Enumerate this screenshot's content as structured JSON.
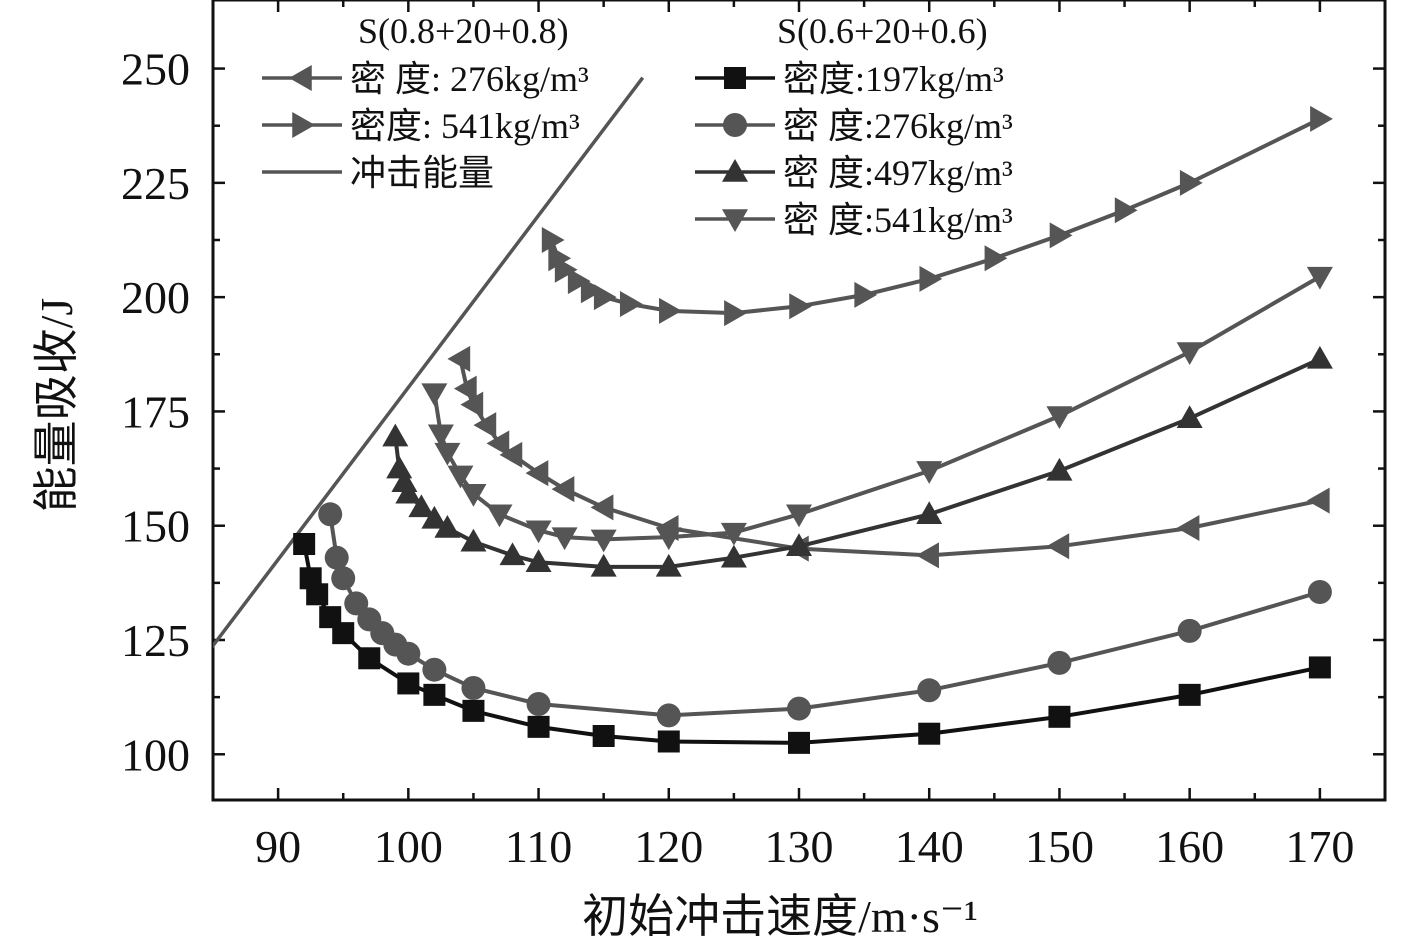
{
  "chart_data": {
    "type": "line",
    "xlabel": "初始冲击速度/m·s⁻¹",
    "ylabel": "能量吸收/J",
    "xlim": [
      85,
      175
    ],
    "ylim": [
      90,
      265
    ],
    "xticks": [
      90,
      100,
      110,
      120,
      130,
      140,
      150,
      160,
      170
    ],
    "yticks": [
      100,
      125,
      150,
      175,
      200,
      225,
      250
    ],
    "legend": {
      "groups": [
        {
          "header": "S(0.8+20+0.8)",
          "entries": [
            "密 度: 276kg/m³",
            "密度: 541kg/m³",
            "冲击能量"
          ]
        },
        {
          "header": "S(0.6+20+0.6)",
          "entries": [
            "密度:197kg/m³",
            "密 度:276kg/m³",
            "密 度:497kg/m³",
            "密 度:541kg/m³"
          ]
        }
      ]
    },
    "impact_energy": {
      "x": [
        84,
        118
      ],
      "y": [
        120,
        248
      ]
    },
    "series": [
      {
        "group": 0,
        "legend_index": 0,
        "marker": "triangle-left",
        "color": "#555555",
        "line_width": 4,
        "x": [
          104,
          104.5,
          105,
          106,
          107,
          108,
          110,
          112,
          115,
          120,
          130,
          140,
          150,
          160,
          170
        ],
        "y": [
          186.5,
          180,
          176.5,
          172,
          168,
          165.5,
          161.5,
          158,
          154,
          149.5,
          145,
          143.5,
          145.5,
          149.5,
          155.5
        ]
      },
      {
        "group": 0,
        "legend_index": 1,
        "marker": "triangle-right",
        "color": "#555555",
        "line_width": 4,
        "x": [
          111,
          111.5,
          112,
          113,
          114,
          115,
          117,
          120,
          125,
          130,
          135,
          140,
          145,
          150,
          155,
          160,
          170
        ],
        "y": [
          212.5,
          208.5,
          206,
          203.5,
          201.5,
          200,
          198.5,
          197,
          196.5,
          198,
          200.5,
          204,
          208.5,
          213.5,
          219,
          225,
          239
        ]
      },
      {
        "group": 1,
        "legend_index": 0,
        "marker": "square",
        "color": "#111111",
        "line_width": 4,
        "x": [
          92,
          92.5,
          93,
          94,
          95,
          97,
          100,
          102,
          105,
          110,
          115,
          120,
          130,
          140,
          150,
          160,
          170
        ],
        "y": [
          146,
          138.5,
          135,
          130,
          126.5,
          121,
          115.5,
          113,
          109.5,
          106,
          104,
          102.8,
          102.5,
          104.5,
          108.2,
          113,
          119
        ]
      },
      {
        "group": 1,
        "legend_index": 1,
        "marker": "circle",
        "color": "#555555",
        "line_width": 4,
        "x": [
          94,
          94.5,
          95,
          96,
          97,
          98,
          99,
          100,
          102,
          105,
          110,
          120,
          130,
          140,
          150,
          160,
          170
        ],
        "y": [
          152.5,
          143,
          138.5,
          133,
          129.5,
          126.5,
          124,
          122,
          118.5,
          114.5,
          111,
          108.5,
          110,
          114,
          120,
          127,
          135.5
        ]
      },
      {
        "group": 1,
        "legend_index": 2,
        "marker": "triangle-up",
        "color": "#333333",
        "line_width": 4,
        "x": [
          99,
          99.3,
          99.7,
          100,
          101,
          102,
          103,
          105,
          108,
          110,
          115,
          120,
          125,
          130,
          140,
          150,
          160,
          170
        ],
        "y": [
          169.5,
          162.5,
          159.5,
          157,
          154,
          151.5,
          149.5,
          146.5,
          143.5,
          142,
          141,
          141,
          143,
          145.5,
          152.5,
          162,
          173.5,
          186.5
        ]
      },
      {
        "group": 1,
        "legend_index": 3,
        "marker": "triangle-down",
        "color": "#555555",
        "line_width": 4,
        "x": [
          102,
          102.5,
          103,
          104,
          105,
          107,
          110,
          112,
          115,
          120,
          125,
          130,
          140,
          150,
          160,
          170
        ],
        "y": [
          179,
          170,
          166,
          161,
          157,
          152.5,
          149,
          147.5,
          147,
          147.5,
          148.5,
          152.5,
          162,
          174,
          188,
          204.5
        ]
      }
    ]
  }
}
